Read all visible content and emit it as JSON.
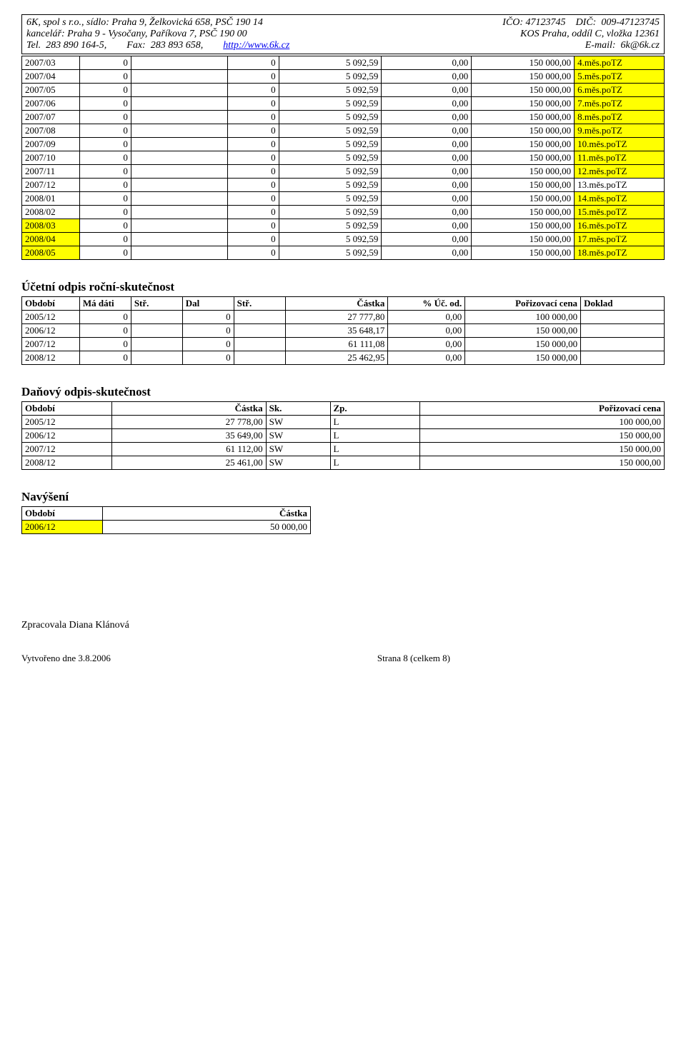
{
  "header": {
    "company": "6K, spol s r.o., sídlo: Praha 9, Želkovická 658, PSČ 190 14",
    "ico": "IČO: 47123745",
    "dic": "DIČ:  009-47123745",
    "office": "kancelář: Praha 9 - Vysočany, Paříkova 7, PSČ 190 00",
    "kos": "KOS Praha, oddíl C, vložka 12361",
    "tel": "Tel.  283 890 164-5,",
    "fax": "Fax:  283 893 658,",
    "url": "http://www.6k.cz",
    "email": "E-mail:  6k@6k.cz"
  },
  "table1": {
    "rows": [
      {
        "period": "2007/03",
        "c1": "0",
        "c2": "0",
        "c3": "5 092,59",
        "c4": "0,00",
        "c5": "150 000,00",
        "note": "4.měs.poTZ",
        "hl": true
      },
      {
        "period": "2007/04",
        "c1": "0",
        "c2": "0",
        "c3": "5 092,59",
        "c4": "0,00",
        "c5": "150 000,00",
        "note": "5.měs.poTZ",
        "hl": true
      },
      {
        "period": "2007/05",
        "c1": "0",
        "c2": "0",
        "c3": "5 092,59",
        "c4": "0,00",
        "c5": "150 000,00",
        "note": "6.měs.poTZ",
        "hl": true
      },
      {
        "period": "2007/06",
        "c1": "0",
        "c2": "0",
        "c3": "5 092,59",
        "c4": "0,00",
        "c5": "150 000,00",
        "note": "7.měs.poTZ",
        "hl": true
      },
      {
        "period": "2007/07",
        "c1": "0",
        "c2": "0",
        "c3": "5 092,59",
        "c4": "0,00",
        "c5": "150 000,00",
        "note": "8.měs.poTZ",
        "hl": true
      },
      {
        "period": "2007/08",
        "c1": "0",
        "c2": "0",
        "c3": "5 092,59",
        "c4": "0,00",
        "c5": "150 000,00",
        "note": "9.měs.poTZ",
        "hl": true
      },
      {
        "period": "2007/09",
        "c1": "0",
        "c2": "0",
        "c3": "5 092,59",
        "c4": "0,00",
        "c5": "150 000,00",
        "note": "10.měs.poTZ",
        "hl": true
      },
      {
        "period": "2007/10",
        "c1": "0",
        "c2": "0",
        "c3": "5 092,59",
        "c4": "0,00",
        "c5": "150 000,00",
        "note": "11.měs.poTZ",
        "hl": true
      },
      {
        "period": "2007/11",
        "c1": "0",
        "c2": "0",
        "c3": "5 092,59",
        "c4": "0,00",
        "c5": "150 000,00",
        "note": "12.měs.poTZ",
        "hl": true
      },
      {
        "period": "2007/12",
        "c1": "0",
        "c2": "0",
        "c3": "5 092,59",
        "c4": "0,00",
        "c5": "150 000,00",
        "note": "13.měs.poTZ",
        "hl": false
      },
      {
        "period": "2008/01",
        "c1": "0",
        "c2": "0",
        "c3": "5 092,59",
        "c4": "0,00",
        "c5": "150 000,00",
        "note": "14.měs.poTZ",
        "hl": true
      },
      {
        "period": "2008/02",
        "c1": "0",
        "c2": "0",
        "c3": "5 092,59",
        "c4": "0,00",
        "c5": "150 000,00",
        "note": "15.měs.poTZ",
        "hl": true
      },
      {
        "period": "2008/03",
        "c1": "0",
        "c2": "0",
        "c3": "5 092,59",
        "c4": "0,00",
        "c5": "150 000,00",
        "note": "16.měs.poTZ",
        "hl": true,
        "periodHl": true
      },
      {
        "period": "2008/04",
        "c1": "0",
        "c2": "0",
        "c3": "5 092,59",
        "c4": "0,00",
        "c5": "150 000,00",
        "note": "17.měs.poTZ",
        "hl": true,
        "periodHl": true
      },
      {
        "period": "2008/05",
        "c1": "0",
        "c2": "0",
        "c3": "5 092,59",
        "c4": "0,00",
        "c5": "150 000,00",
        "note": "18.měs.poTZ",
        "hl": true,
        "periodHl": true
      }
    ]
  },
  "section2": {
    "title": "Účetní odpis roční-skutečnost",
    "headers": [
      "Období",
      "Má dáti",
      "Stř.",
      "Dal",
      "Stř.",
      "Částka",
      "% Úč. od.",
      "Pořizovací cena",
      "Doklad"
    ],
    "rows": [
      {
        "period": "2005/12",
        "c1": "0",
        "c2": "",
        "c3": "0",
        "c4": "",
        "c5": "27 777,80",
        "c6": "0,00",
        "c7": "100 000,00",
        "c8": ""
      },
      {
        "period": "2006/12",
        "c1": "0",
        "c2": "",
        "c3": "0",
        "c4": "",
        "c5": "35 648,17",
        "c6": "0,00",
        "c7": "150 000,00",
        "c8": ""
      },
      {
        "period": "2007/12",
        "c1": "0",
        "c2": "",
        "c3": "0",
        "c4": "",
        "c5": "61 111,08",
        "c6": "0,00",
        "c7": "150 000,00",
        "c8": ""
      },
      {
        "period": "2008/12",
        "c1": "0",
        "c2": "",
        "c3": "0",
        "c4": "",
        "c5": "25 462,95",
        "c6": "0,00",
        "c7": "150 000,00",
        "c8": ""
      }
    ]
  },
  "section3": {
    "title": "Daňový odpis-skutečnost",
    "headers": [
      "Období",
      "Částka",
      "Sk.",
      "Zp.",
      "Pořizovací cena"
    ],
    "rows": [
      {
        "period": "2005/12",
        "amount": "27 778,00",
        "sk": "SW",
        "zp": "L",
        "cost": "100 000,00"
      },
      {
        "period": "2006/12",
        "amount": "35 649,00",
        "sk": "SW",
        "zp": "L",
        "cost": "150 000,00"
      },
      {
        "period": "2007/12",
        "amount": "61 112,00",
        "sk": "SW",
        "zp": "L",
        "cost": "150 000,00"
      },
      {
        "period": "2008/12",
        "amount": "25 461,00",
        "sk": "SW",
        "zp": "L",
        "cost": "150 000,00"
      }
    ]
  },
  "section4": {
    "title": "Navýšení",
    "headers": [
      "Období",
      "Částka"
    ],
    "rows": [
      {
        "period": "2006/12",
        "amount": "50 000,00",
        "hl": true
      }
    ]
  },
  "footer": {
    "author": "Zpracovala Diana Klánová",
    "created": "Vytvořeno dne 3.8.2006",
    "page": "Strana 8 (celkem 8)"
  },
  "layout": {
    "table1_colwidths": [
      "9%",
      "8%",
      "15%",
      "8%",
      "16%",
      "14%",
      "16%",
      "14%"
    ],
    "table2_colwidths": [
      "9%",
      "8%",
      "8%",
      "8%",
      "8%",
      "16%",
      "12%",
      "18%",
      "13%"
    ],
    "table3_colwidths": [
      "14%",
      "24%",
      "10%",
      "14%",
      "38%"
    ],
    "table4_colwidths": [
      "28%",
      "72%"
    ],
    "hl_color": "#ffff00"
  }
}
